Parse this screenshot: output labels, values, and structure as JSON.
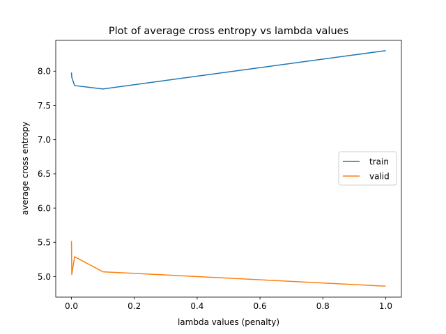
{
  "chart_data": {
    "type": "line",
    "title": "Plot of average cross entropy vs lambda values",
    "xlabel": "lambda values (penalty)",
    "ylabel": "average cross entropy",
    "xlim": [
      -0.05,
      1.05
    ],
    "ylim": [
      4.7,
      8.45
    ],
    "xticks": [
      0.0,
      0.2,
      0.4,
      0.6,
      0.8,
      1.0
    ],
    "xtick_labels": [
      "0.0",
      "0.2",
      "0.4",
      "0.6",
      "0.8",
      "1.0"
    ],
    "yticks": [
      5.0,
      5.5,
      6.0,
      6.5,
      7.0,
      7.5,
      8.0
    ],
    "ytick_labels": [
      "5.0",
      "5.5",
      "6.0",
      "6.5",
      "7.0",
      "7.5",
      "8.0"
    ],
    "grid": false,
    "legend_position": "center-right",
    "x": [
      0.0,
      0.001,
      0.01,
      0.1,
      1.0
    ],
    "series": [
      {
        "name": "train",
        "color": "#1f77b4",
        "values": [
          7.98,
          7.91,
          7.79,
          7.74,
          8.3
        ]
      },
      {
        "name": "valid",
        "color": "#ff7f0e",
        "values": [
          5.52,
          5.03,
          5.29,
          5.07,
          4.86
        ]
      }
    ]
  }
}
